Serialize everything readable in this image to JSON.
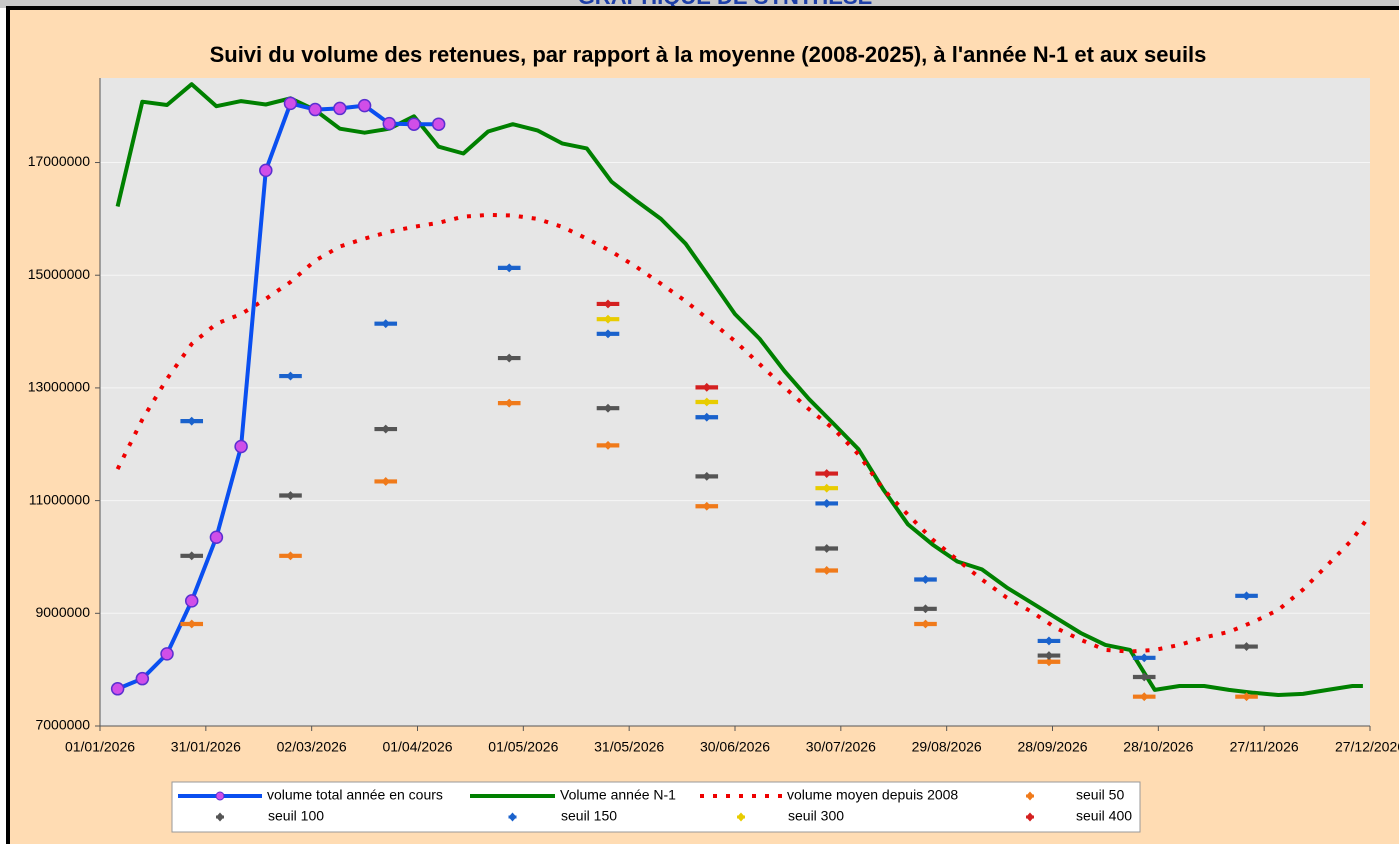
{
  "header": "GRAPHIQUE DE SYNTHESE",
  "chart_data": {
    "type": "line",
    "title": "Suivi du volume des retenues, par rapport à la moyenne (2008-2025), à l'année N-1 et aux seuils",
    "xlim": [
      "01/01/2026",
      "27/12/2026"
    ],
    "xticks": [
      "01/01/2026",
      "31/01/2026",
      "02/03/2026",
      "01/04/2026",
      "01/05/2026",
      "31/05/2026",
      "30/06/2026",
      "30/07/2026",
      "29/08/2026",
      "28/09/2026",
      "28/10/2026",
      "27/11/2026",
      "27/12/2026"
    ],
    "ylim": [
      7000000,
      18500000
    ],
    "yticks": [
      7000000,
      9000000,
      11000000,
      13000000,
      15000000,
      17000000
    ],
    "grid": true,
    "legend": "bottom",
    "series": [
      {
        "name": "volume total année en cours",
        "color": "#0a4ff0",
        "line": "solid",
        "marker": "circle",
        "x": [
          "06/01/2026",
          "13/01/2026",
          "20/01/2026",
          "27/01/2026",
          "03/02/2026",
          "10/02/2026",
          "17/02/2026",
          "24/02/2026",
          "03/03/2026",
          "10/03/2026",
          "17/03/2026",
          "24/03/2026",
          "31/03/2026",
          "07/04/2026"
        ],
        "values": [
          7660000,
          7840000,
          8280000,
          9220000,
          10350000,
          11960000,
          16860000,
          18050000,
          17940000,
          17960000,
          18010000,
          17690000,
          17680000,
          17680000
        ]
      },
      {
        "name": "Volume année N-1",
        "color": "#008000",
        "line": "solid",
        "marker": "none",
        "x": [
          "06/01/2026",
          "13/01/2026",
          "20/01/2026",
          "27/01/2026",
          "03/02/2026",
          "10/02/2026",
          "17/02/2026",
          "24/02/2026",
          "03/03/2026",
          "10/03/2026",
          "17/03/2026",
          "24/03/2026",
          "31/03/2026",
          "07/04/2026",
          "14/04/2026",
          "21/04/2026",
          "28/04/2026",
          "05/05/2026",
          "12/05/2026",
          "19/05/2026",
          "26/05/2026",
          "02/06/2026",
          "09/06/2026",
          "16/06/2026",
          "23/06/2026",
          "30/06/2026",
          "07/07/2026",
          "14/07/2026",
          "21/07/2026",
          "28/07/2026",
          "04/08/2026",
          "11/08/2026",
          "18/08/2026",
          "25/08/2026",
          "01/09/2026",
          "08/09/2026",
          "15/09/2026",
          "22/09/2026",
          "29/09/2026",
          "06/10/2026",
          "13/10/2026",
          "20/10/2026",
          "27/10/2026",
          "03/11/2026",
          "10/11/2026",
          "17/11/2026",
          "24/11/2026",
          "01/12/2026",
          "08/12/2026",
          "15/12/2026",
          "22/12/2026",
          "25/12/2026"
        ],
        "values": [
          16220000,
          18080000,
          18020000,
          18390000,
          18000000,
          18090000,
          18030000,
          18140000,
          17930000,
          17600000,
          17530000,
          17600000,
          17820000,
          17280000,
          17160000,
          17550000,
          17680000,
          17570000,
          17340000,
          17250000,
          16660000,
          16320000,
          16000000,
          15560000,
          14940000,
          14310000,
          13870000,
          13300000,
          12800000,
          12360000,
          11910000,
          11200000,
          10580000,
          10220000,
          9920000,
          9780000,
          9460000,
          9190000,
          8920000,
          8650000,
          8440000,
          8350000,
          7640000,
          7710000,
          7710000,
          7640000,
          7590000,
          7550000,
          7570000,
          7640000,
          7710000,
          7710000
        ]
      },
      {
        "name": "volume moyen depuis 2008",
        "color": "#ee0000",
        "line": "dotted",
        "marker": "none",
        "x": [
          "06/01/2026",
          "13/01/2026",
          "20/01/2026",
          "27/01/2026",
          "03/02/2026",
          "10/02/2026",
          "17/02/2026",
          "24/02/2026",
          "03/03/2026",
          "10/03/2026",
          "17/03/2026",
          "24/03/2026",
          "31/03/2026",
          "07/04/2026",
          "14/04/2026",
          "21/04/2026",
          "28/04/2026",
          "05/05/2026",
          "12/05/2026",
          "19/05/2026",
          "26/05/2026",
          "02/06/2026",
          "09/06/2026",
          "16/06/2026",
          "23/06/2026",
          "30/06/2026",
          "07/07/2026",
          "14/07/2026",
          "21/07/2026",
          "28/07/2026",
          "04/08/2026",
          "11/08/2026",
          "18/08/2026",
          "25/08/2026",
          "01/09/2026",
          "08/09/2026",
          "15/09/2026",
          "22/09/2026",
          "29/09/2026",
          "06/10/2026",
          "13/10/2026",
          "20/10/2026",
          "27/10/2026",
          "03/11/2026",
          "10/11/2026",
          "17/11/2026",
          "24/11/2026",
          "01/12/2026",
          "08/12/2026",
          "15/12/2026",
          "22/12/2026",
          "27/12/2026"
        ],
        "values": [
          11560000,
          12440000,
          13160000,
          13780000,
          14140000,
          14310000,
          14580000,
          14880000,
          15260000,
          15510000,
          15650000,
          15770000,
          15860000,
          15930000,
          16040000,
          16070000,
          16060000,
          16000000,
          15860000,
          15650000,
          15420000,
          15150000,
          14850000,
          14540000,
          14190000,
          13830000,
          13420000,
          13010000,
          12620000,
          12270000,
          11820000,
          11200000,
          10750000,
          10310000,
          9950000,
          9600000,
          9280000,
          9030000,
          8740000,
          8530000,
          8350000,
          8320000,
          8350000,
          8440000,
          8570000,
          8670000,
          8850000,
          9060000,
          9420000,
          9860000,
          10310000,
          10750000
        ]
      },
      {
        "name": "seuil 50",
        "color": "#f07a1a",
        "line": "none",
        "marker": "dash",
        "x": [
          "27/01/2026",
          "24/02/2026",
          "23/03/2026",
          "27/04/2026",
          "25/05/2026",
          "22/06/2026",
          "26/07/2026",
          "23/08/2026",
          "27/09/2026",
          "24/10/2026",
          "22/11/2026"
        ],
        "values": [
          8810000,
          10020000,
          11340000,
          12730000,
          11980000,
          10900000,
          9760000,
          8810000,
          8140000,
          7520000,
          7520000
        ]
      },
      {
        "name": "seuil 100",
        "color": "#555555",
        "line": "none",
        "marker": "dash",
        "x": [
          "27/01/2026",
          "24/02/2026",
          "23/03/2026",
          "27/04/2026",
          "25/05/2026",
          "22/06/2026",
          "26/07/2026",
          "23/08/2026",
          "27/09/2026",
          "24/10/2026",
          "22/11/2026"
        ],
        "values": [
          10020000,
          11090000,
          12270000,
          13530000,
          12640000,
          11430000,
          10150000,
          9080000,
          8250000,
          7870000,
          8410000
        ]
      },
      {
        "name": "seuil 150",
        "color": "#1a62cc",
        "line": "none",
        "marker": "dash",
        "x": [
          "27/01/2026",
          "24/02/2026",
          "23/03/2026",
          "27/04/2026",
          "25/05/2026",
          "22/06/2026",
          "26/07/2026",
          "23/08/2026",
          "27/09/2026",
          "24/10/2026",
          "22/11/2026"
        ],
        "values": [
          12410000,
          13210000,
          14140000,
          15130000,
          13960000,
          12480000,
          10950000,
          9600000,
          8510000,
          8210000,
          9310000
        ]
      },
      {
        "name": "seuil 300",
        "color": "#e8cc00",
        "line": "none",
        "marker": "dash",
        "x": [
          "25/05/2026",
          "22/06/2026",
          "26/07/2026"
        ],
        "values": [
          14220000,
          12750000,
          11220000
        ]
      },
      {
        "name": "seuil 400",
        "color": "#d42020",
        "line": "none",
        "marker": "dash",
        "x": [
          "25/05/2026",
          "22/06/2026",
          "26/07/2026"
        ],
        "values": [
          14490000,
          13010000,
          11480000
        ]
      }
    ]
  }
}
